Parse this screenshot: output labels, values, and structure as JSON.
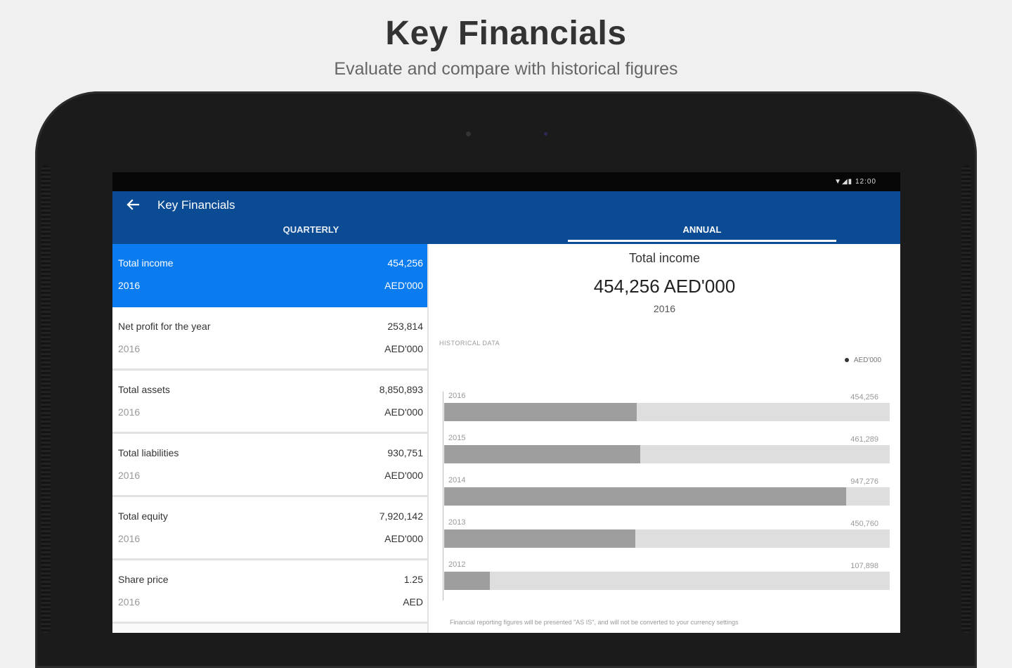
{
  "promo": {
    "title": "Key Financials",
    "subtitle": "Evaluate and compare with historical figures"
  },
  "statusbar": {
    "icons": "▼◢▮ 12:00"
  },
  "appbar": {
    "title": "Key Financials",
    "back_icon": "arrow-left-icon",
    "tabs": [
      {
        "label": "QUARTERLY",
        "selected": false
      },
      {
        "label": "ANNUAL",
        "selected": true
      }
    ]
  },
  "list": {
    "items": [
      {
        "label": "Total income",
        "value": "454,256",
        "year": "2016",
        "unit": "AED'000",
        "active": true
      },
      {
        "label": "Net profit for the year",
        "value": "253,814",
        "year": "2016",
        "unit": "AED'000",
        "active": false
      },
      {
        "label": "Total assets",
        "value": "8,850,893",
        "year": "2016",
        "unit": "AED'000",
        "active": false
      },
      {
        "label": "Total liabilities",
        "value": "930,751",
        "year": "2016",
        "unit": "AED'000",
        "active": false
      },
      {
        "label": "Total equity",
        "value": "7,920,142",
        "year": "2016",
        "unit": "AED'000",
        "active": false
      },
      {
        "label": "Share price",
        "value": "1.25",
        "year": "2016",
        "unit": "AED",
        "active": false
      }
    ]
  },
  "detail": {
    "title": "Total income",
    "value": "454,256 AED'000",
    "year": "2016",
    "historical_label": "HISTORICAL DATA",
    "footnote": "Financial reporting figures will be presented \"AS IS\", and will not be converted to your currency settings"
  },
  "chart_data": {
    "type": "bar",
    "orientation": "horizontal",
    "categories": [
      "2016",
      "2015",
      "2014",
      "2013",
      "2012"
    ],
    "series": [
      {
        "name": "AED'000",
        "values": [
          454256,
          461289,
          947276,
          450760,
          107898
        ]
      }
    ],
    "value_labels": [
      "454,256",
      "461,289",
      "947,276",
      "450,760",
      "107,898"
    ],
    "xlim": [
      0,
      1050000
    ],
    "legend": "top-right",
    "colors": {
      "fill": "#9e9e9e",
      "track": "#dedede"
    }
  }
}
